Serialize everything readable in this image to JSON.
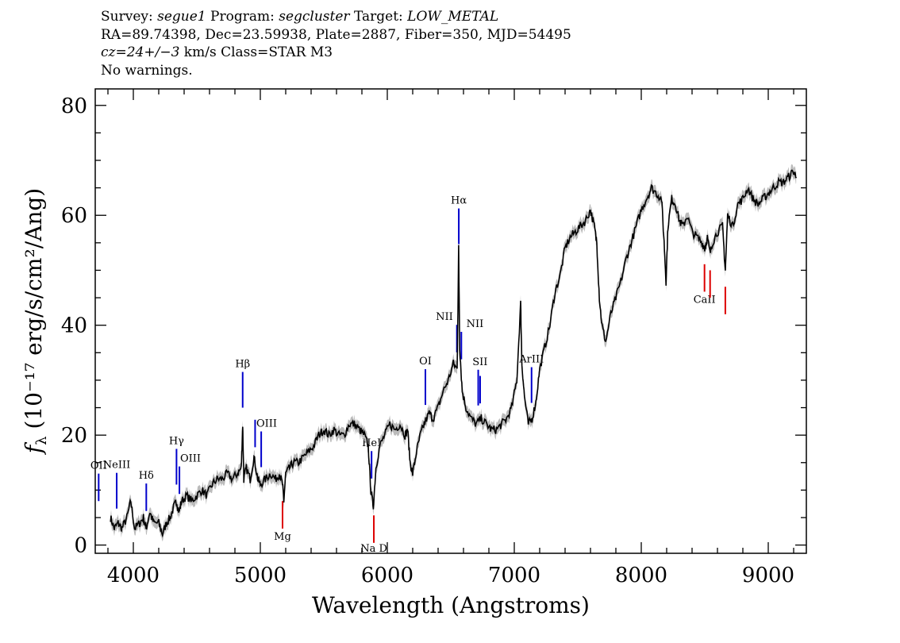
{
  "header": {
    "line1": [
      {
        "text": "Survey: ",
        "italic": false
      },
      {
        "text": "segue1",
        "italic": true
      },
      {
        "text": " Program: ",
        "italic": false
      },
      {
        "text": "segcluster",
        "italic": true
      },
      {
        "text": " Target: ",
        "italic": false
      },
      {
        "text": "LOW_METAL",
        "italic": true
      }
    ],
    "line2": "RA=89.74398, Dec=23.59938, Plate=2887, Fiber=350, MJD=54495",
    "line3": [
      {
        "text": "cz=24+/−3",
        "italic": true
      },
      {
        "text": " km/s Class=STAR M3",
        "italic": false
      }
    ],
    "line4": "No warnings."
  },
  "chart_data": {
    "type": "line",
    "xlabel": "Wavelength (Angstroms)",
    "ylabel": "fλ (10⁻¹⁷ erg/s/cm²/Ang)",
    "xlim": [
      3700,
      9300
    ],
    "ylim": [
      -1.5,
      83
    ],
    "x_ticks": [
      4000,
      5000,
      6000,
      7000,
      8000,
      9000
    ],
    "y_ticks": [
      0,
      20,
      40,
      60,
      80
    ],
    "grid": false,
    "series": [
      {
        "line_color": "#000000",
        "error_color": "#bbbbbb",
        "x": [
          3820,
          3850,
          3880,
          3910,
          3950,
          3980,
          4010,
          4050,
          4080,
          4100,
          4130,
          4160,
          4200,
          4230,
          4260,
          4290,
          4320,
          4340,
          4360,
          4380,
          4420,
          4460,
          4500,
          4540,
          4580,
          4620,
          4660,
          4700,
          4740,
          4780,
          4820,
          4850,
          4861,
          4870,
          4890,
          4920,
          4950,
          4980,
          5000,
          5040,
          5080,
          5120,
          5150,
          5175,
          5185,
          5200,
          5230,
          5260,
          5300,
          5340,
          5380,
          5420,
          5460,
          5500,
          5540,
          5580,
          5620,
          5660,
          5700,
          5740,
          5780,
          5820,
          5850,
          5870,
          5890,
          5910,
          5940,
          5980,
          6020,
          6060,
          6100,
          6140,
          6160,
          6180,
          6200,
          6230,
          6260,
          6290,
          6330,
          6360,
          6400,
          6440,
          6480,
          6520,
          6550,
          6562,
          6570,
          6590,
          6620,
          6660,
          6700,
          6740,
          6780,
          6820,
          6860,
          6900,
          6940,
          6980,
          7020,
          7050,
          7060,
          7080,
          7110,
          7140,
          7170,
          7200,
          7240,
          7280,
          7320,
          7360,
          7400,
          7440,
          7480,
          7520,
          7560,
          7600,
          7630,
          7650,
          7670,
          7690,
          7720,
          7760,
          7800,
          7840,
          7880,
          7920,
          7960,
          8000,
          8040,
          8080,
          8120,
          8160,
          8180,
          8195,
          8210,
          8240,
          8270,
          8300,
          8330,
          8360,
          8400,
          8440,
          8480,
          8500,
          8520,
          8542,
          8560,
          8600,
          8640,
          8662,
          8680,
          8720,
          8760,
          8800,
          8840,
          8880,
          8920,
          8960,
          9000,
          9040,
          9080,
          9120,
          9160,
          9200,
          9220
        ],
        "y": [
          5,
          3,
          4,
          3,
          5,
          8,
          3,
          4,
          5,
          3,
          6,
          4,
          4,
          2,
          4,
          5,
          7,
          8,
          6,
          8,
          9,
          8,
          9,
          10,
          9,
          11,
          12,
          12,
          13,
          12,
          13,
          14,
          22,
          12,
          14,
          12,
          16,
          12,
          11,
          12,
          13,
          12,
          13,
          11,
          8,
          13,
          14,
          15,
          15,
          16,
          17,
          18,
          20,
          21,
          20,
          21,
          20,
          20,
          22,
          22,
          21,
          20,
          18,
          10,
          7,
          14,
          18,
          20,
          22,
          21,
          22,
          20,
          21,
          15,
          13,
          17,
          20,
          22,
          24,
          23,
          25,
          28,
          30,
          33,
          32,
          54,
          36,
          28,
          25,
          23,
          22,
          23,
          22,
          21,
          21,
          22,
          23,
          25,
          30,
          44,
          33,
          27,
          22,
          23,
          26,
          32,
          36,
          40,
          46,
          49,
          54,
          56,
          57,
          58,
          59,
          61,
          58,
          55,
          45,
          40,
          37,
          42,
          45,
          48,
          52,
          55,
          58,
          61,
          63,
          65,
          64,
          63,
          55,
          48,
          58,
          63,
          62,
          59,
          58,
          60,
          57,
          56,
          55,
          54,
          56,
          53,
          55,
          57,
          58,
          50,
          60,
          58,
          62,
          63,
          65,
          63,
          62,
          63,
          64,
          65,
          66,
          66,
          67,
          68,
          67
        ]
      }
    ],
    "emission_lines": [
      {
        "name": "OII",
        "wave": 3727,
        "label_at": 3727
      },
      {
        "name": "NeIII",
        "wave": 3869,
        "label_at": 3869
      },
      {
        "name": "Hδ",
        "wave": 4102,
        "label_at": 4102
      },
      {
        "name": "Hγ",
        "wave": 4340,
        "label_at": 4340
      },
      {
        "name": "OIII",
        "wave": 4363,
        "label_at": 4450
      },
      {
        "name": "Hβ",
        "wave": 4861,
        "label_at": 4861
      },
      {
        "name": "",
        "wave": 4959,
        "label_at": 4959
      },
      {
        "name": "OIII",
        "wave": 5007,
        "label_at": 5050
      },
      {
        "name": "HeI",
        "wave": 5876,
        "label_at": 5876
      },
      {
        "name": "OI",
        "wave": 6300,
        "label_at": 6300
      },
      {
        "name": "NII",
        "wave": 6548,
        "label_at": 6450
      },
      {
        "name": "Hα",
        "wave": 6563,
        "label_at": 6563
      },
      {
        "name": "NII",
        "wave": 6583,
        "label_at": 6690
      },
      {
        "name": "SII",
        "wave": 6716,
        "label_at": 6730
      },
      {
        "name": "",
        "wave": 6731,
        "label_at": 6731
      },
      {
        "name": "ArIII",
        "wave": 7136,
        "label_at": 7136
      }
    ],
    "absorption_lines": [
      {
        "name": "Mg",
        "wave": 5175
      },
      {
        "name": "Na D",
        "wave": 5894
      },
      {
        "name": "CaII",
        "wave": 8498
      },
      {
        "name": "",
        "wave": 8542
      },
      {
        "name": "",
        "wave": 8662
      }
    ],
    "line_colors": {
      "emission": "#0000cc",
      "absorption": "#dd0000"
    }
  }
}
